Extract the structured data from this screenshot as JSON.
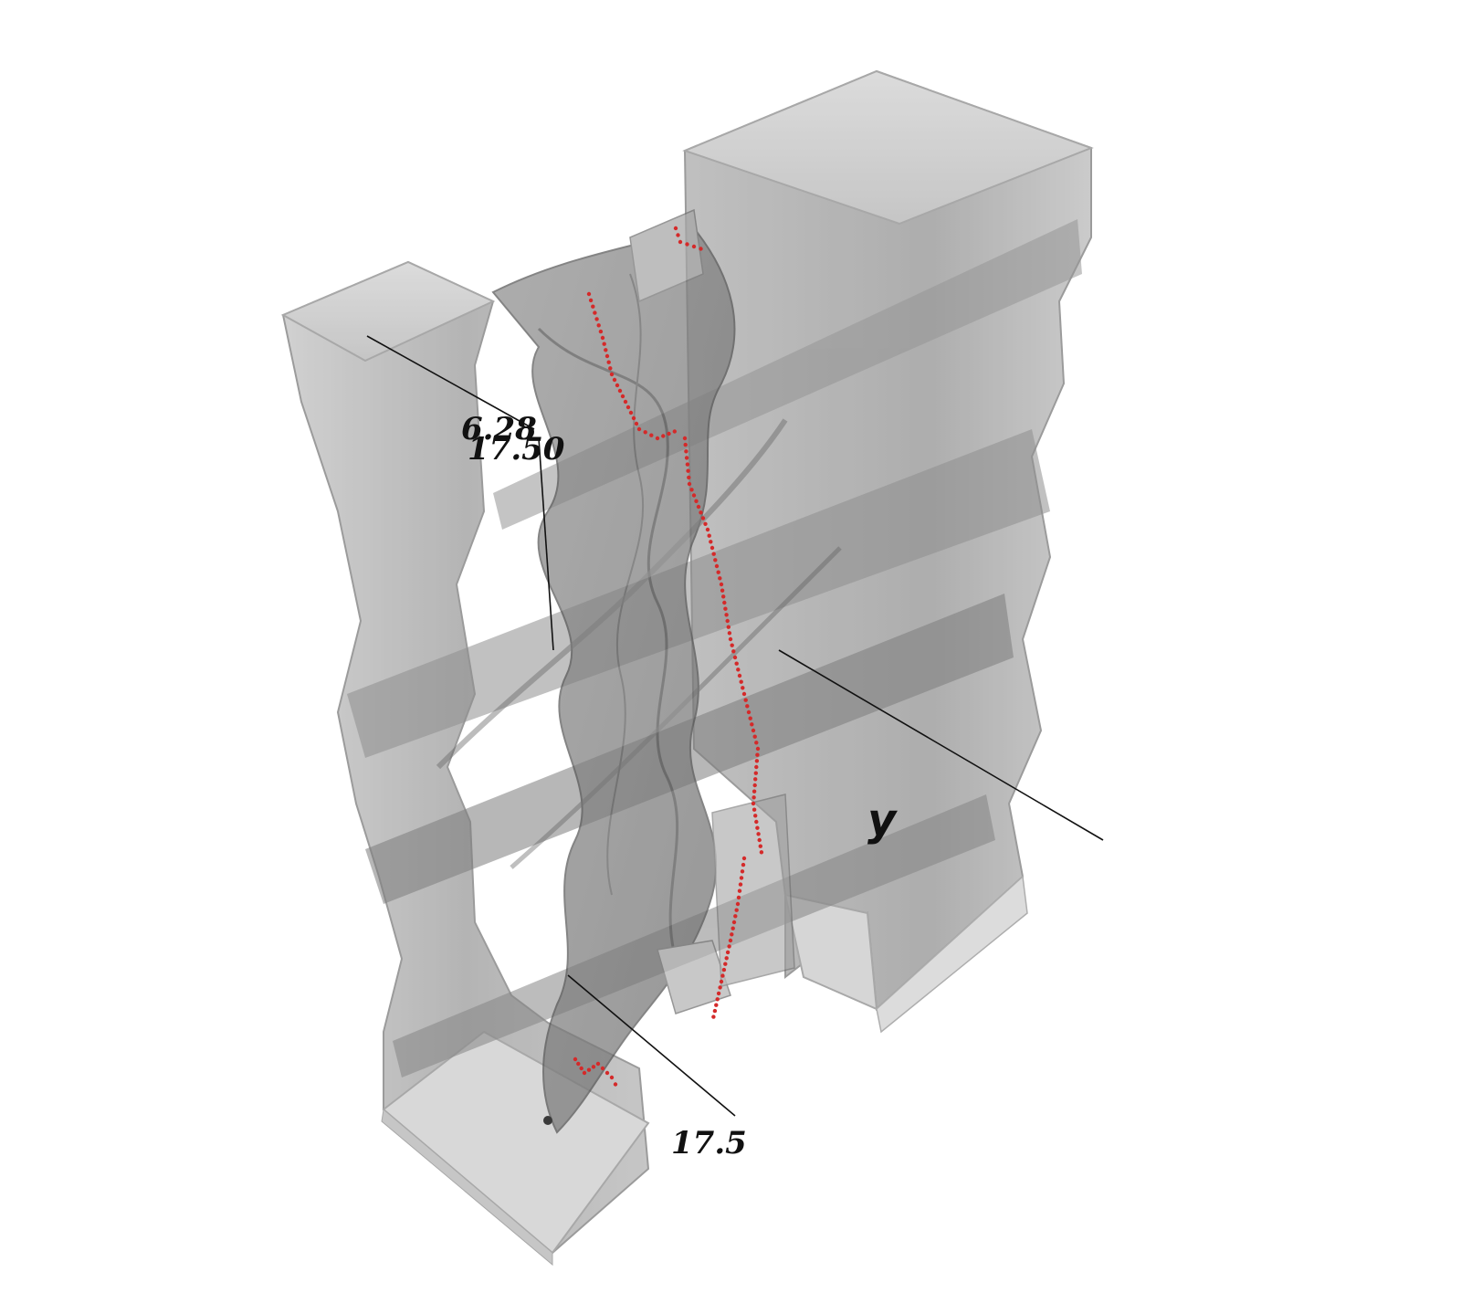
{
  "figure": {
    "colors": {
      "background": "#ffffff",
      "surface": "#9a9a9a",
      "surface_dark": "#6e6e6e",
      "surface_light": "#c8c8c8",
      "trace": "#d42a2a",
      "axis_line": "#111111"
    }
  },
  "axes": {
    "tick_top_1": "6.28",
    "tick_top_2": "17.50",
    "tick_bottom": "17.5",
    "axis_name": "y"
  }
}
